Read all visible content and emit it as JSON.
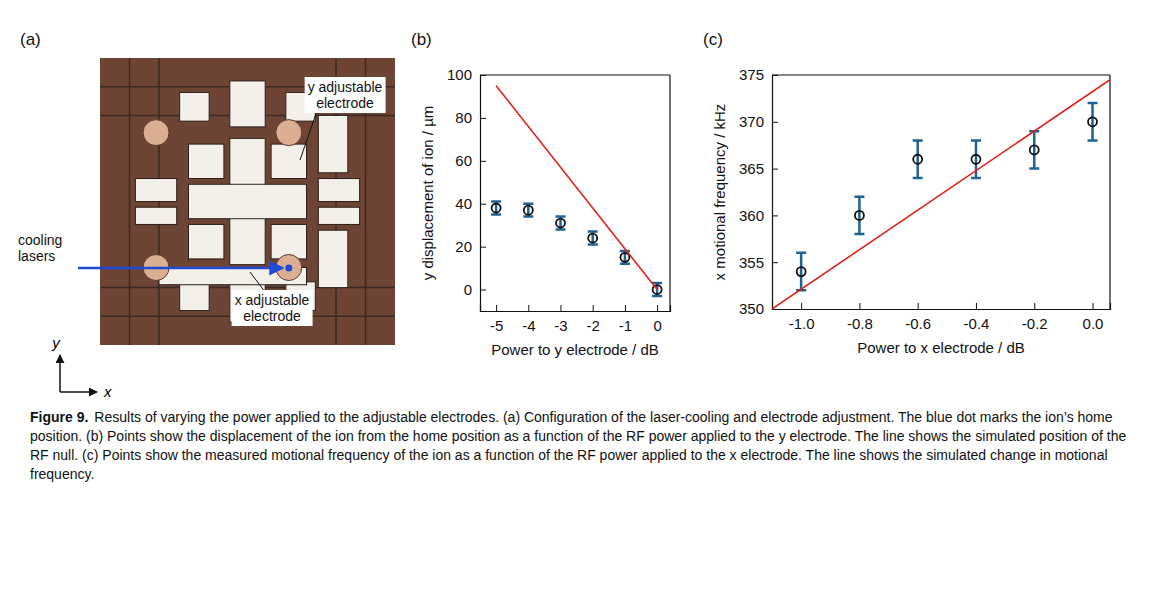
{
  "chart_data": [
    {
      "type": "scatter",
      "panel_label": "(b)",
      "x_label": "Power to y electrode / dB",
      "y_label": "y displacement of ion / µm",
      "xlim": [
        -5.5,
        0.4
      ],
      "xticks": [
        -5,
        -4,
        -3,
        -2,
        -1,
        0
      ],
      "ylim": [
        -10,
        100
      ],
      "yticks": [
        0,
        20,
        40,
        60,
        80,
        100
      ],
      "series": [
        {
          "type": "scatter",
          "marker": "circle",
          "color": "#1f6391",
          "x": [
            -5,
            -4,
            -3,
            -2,
            -1,
            0
          ],
          "values": [
            38,
            37,
            31,
            24,
            15,
            0
          ],
          "errors": [
            3,
            3,
            3,
            3,
            3,
            3
          ]
        },
        {
          "type": "line",
          "line_style": "solid",
          "color": "#e0201b",
          "x": [
            -5,
            0
          ],
          "values": [
            95,
            0
          ]
        }
      ]
    },
    {
      "type": "scatter",
      "panel_label": "(c)",
      "x_label": "Power to x electrode / dB",
      "y_label": "x motional frequency / kHz",
      "xlim": [
        -1.1,
        0.06
      ],
      "xticks": [
        {
          "value": -1,
          "label": "-1.0"
        },
        -0.8,
        -0.6,
        -0.4,
        -0.2,
        {
          "value": 0,
          "label": "0.0"
        }
      ],
      "ylim": [
        350,
        375
      ],
      "yticks": [
        350,
        355,
        360,
        365,
        370,
        375
      ],
      "series": [
        {
          "type": "scatter",
          "marker": "circle",
          "color": "#1f6391",
          "x": [
            -1,
            -0.8,
            -0.6,
            -0.4,
            -0.2,
            0
          ],
          "values": [
            354,
            360,
            366,
            366,
            367,
            370
          ],
          "errors": [
            2,
            2,
            2,
            2,
            2,
            2
          ]
        },
        {
          "type": "line",
          "line_style": "solid",
          "color": "#e0201b",
          "x": [
            -1.1,
            0.06
          ],
          "values": [
            350,
            374.5
          ]
        }
      ]
    }
  ],
  "panel_a": {
    "panel_label": "(a)",
    "labels": [
      "y adjustable electrode",
      "cooling lasers",
      "x adjustable electrode"
    ],
    "axis_labels": {
      "x": "x",
      "y": "y"
    }
  },
  "caption": {
    "label": "Figure 9.",
    "text": "Results of varying the power applied to the adjustable electrodes. (a) Configuration of the laser-cooling and electrode adjustment. The blue dot marks the ion’s home position. (b) Points show the displacement of the ion from the home position as a function of the RF power applied to the y electrode. The line shows the simulated position of the RF null. (c) Points show the measured motional frequency of the ion as a function of the RF power applied to the x electrode. The line shows the simulated change in motional frequency."
  }
}
